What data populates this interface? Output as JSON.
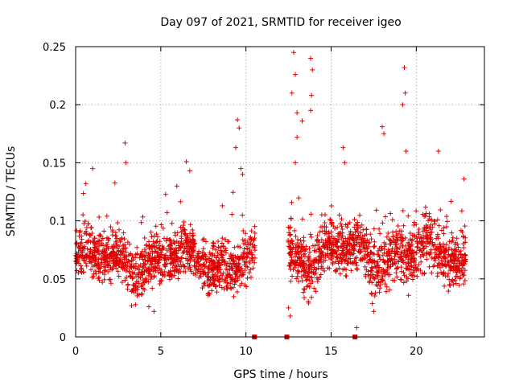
{
  "chart_data": {
    "type": "scatter",
    "title": "Day 097 of 2021, SRMTID for receiver igeo",
    "xlabel": "GPS time / hours",
    "ylabel": "SRMTID / TECUs",
    "xlim": [
      0,
      24
    ],
    "ylim": [
      0,
      0.25
    ],
    "x_ticks": [
      {
        "value": 0,
        "label": "0"
      },
      {
        "value": 5,
        "label": "5"
      },
      {
        "value": 10,
        "label": "10"
      },
      {
        "value": 15,
        "label": "15"
      },
      {
        "value": 20,
        "label": "20"
      }
    ],
    "y_ticks": [
      {
        "value": 0,
        "label": "0"
      },
      {
        "value": 0.05,
        "label": "0.05"
      },
      {
        "value": 0.1,
        "label": "0.1"
      },
      {
        "value": 0.15,
        "label": "0.15"
      },
      {
        "value": 0.2,
        "label": "0.2"
      },
      {
        "value": 0.25,
        "label": "0.25"
      }
    ],
    "grid": true,
    "marker": "plus",
    "color": "#e00000",
    "gap_markers": [
      10.5,
      12.4,
      16.4
    ],
    "series": [
      {
        "name": "SRMTID",
        "segments": [
          {
            "x_start": 0.0,
            "x_end": 10.55,
            "base": 0.066,
            "spread": 0.022
          },
          {
            "x_start": 12.45,
            "x_end": 22.9,
            "base": 0.071,
            "spread": 0.024
          }
        ],
        "spikes": [
          {
            "x": 0.6,
            "y": 0.132
          },
          {
            "x": 1.0,
            "y": 0.145
          },
          {
            "x": 2.9,
            "y": 0.167
          },
          {
            "x": 2.95,
            "y": 0.15
          },
          {
            "x": 6.5,
            "y": 0.151
          },
          {
            "x": 6.7,
            "y": 0.143
          },
          {
            "x": 9.5,
            "y": 0.187
          },
          {
            "x": 9.6,
            "y": 0.18
          },
          {
            "x": 9.4,
            "y": 0.163
          },
          {
            "x": 9.7,
            "y": 0.145
          },
          {
            "x": 9.8,
            "y": 0.14
          },
          {
            "x": 12.8,
            "y": 0.245
          },
          {
            "x": 12.9,
            "y": 0.226
          },
          {
            "x": 12.7,
            "y": 0.21
          },
          {
            "x": 13.0,
            "y": 0.193
          },
          {
            "x": 13.0,
            "y": 0.172
          },
          {
            "x": 12.9,
            "y": 0.15
          },
          {
            "x": 13.3,
            "y": 0.186
          },
          {
            "x": 13.8,
            "y": 0.24
          },
          {
            "x": 13.9,
            "y": 0.23
          },
          {
            "x": 13.85,
            "y": 0.208
          },
          {
            "x": 13.8,
            "y": 0.195
          },
          {
            "x": 15.7,
            "y": 0.163
          },
          {
            "x": 15.8,
            "y": 0.15
          },
          {
            "x": 18.0,
            "y": 0.181
          },
          {
            "x": 18.1,
            "y": 0.175
          },
          {
            "x": 19.3,
            "y": 0.232
          },
          {
            "x": 19.35,
            "y": 0.21
          },
          {
            "x": 19.2,
            "y": 0.2
          },
          {
            "x": 19.4,
            "y": 0.16
          },
          {
            "x": 21.3,
            "y": 0.16
          },
          {
            "x": 22.8,
            "y": 0.136
          },
          {
            "x": 12.5,
            "y": 0.025
          },
          {
            "x": 12.6,
            "y": 0.018
          },
          {
            "x": 4.6,
            "y": 0.022
          },
          {
            "x": 16.5,
            "y": 0.008
          },
          {
            "x": 17.5,
            "y": 0.022
          },
          {
            "x": 4.3,
            "y": 0.026
          }
        ]
      }
    ]
  }
}
